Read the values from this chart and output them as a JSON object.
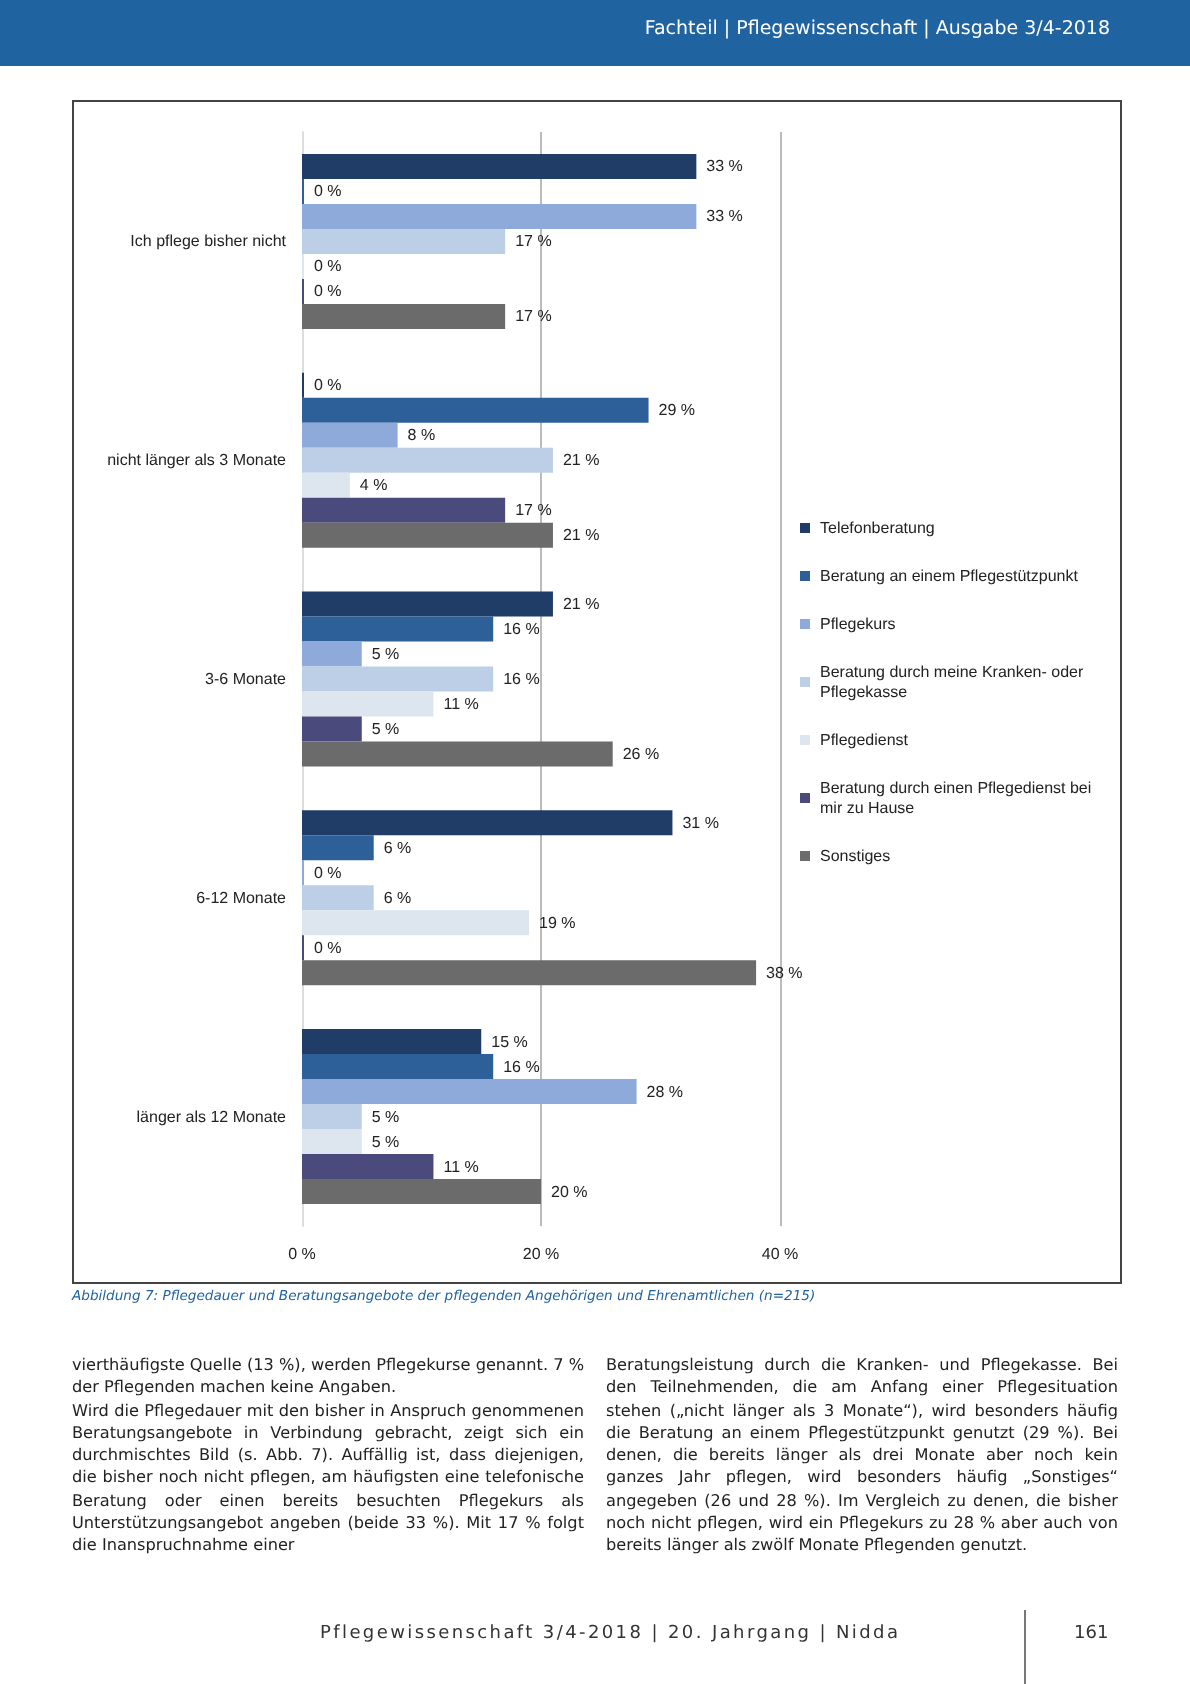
{
  "chart_data": {
    "type": "bar",
    "orientation": "horizontal",
    "categories": [
      "Ich pflege bisher nicht",
      "nicht länger als 3 Monate",
      "3-6 Monate",
      "6-12 Monate",
      "länger als 12 Monate"
    ],
    "series": [
      {
        "name": "Telefonberatung",
        "color": "#1f3d66",
        "values": [
          33,
          0,
          21,
          31,
          15
        ],
        "value_labels": [
          "33 %",
          "0 %",
          "21 %",
          "31 %",
          "15 %"
        ]
      },
      {
        "name": "Beratung an einem Pflegestützpunkt",
        "color": "#2d5f99",
        "values": [
          0,
          29,
          16,
          6,
          16
        ],
        "value_labels": [
          "0 %",
          "29 %",
          "16 %",
          "6 %",
          "16 %"
        ]
      },
      {
        "name": "Pflegekurs",
        "color": "#8eaadb",
        "values": [
          33,
          8,
          5,
          0,
          28
        ],
        "value_labels": [
          "33 %",
          "8 %",
          "5 %",
          "0 %",
          "28 %"
        ]
      },
      {
        "name": "Beratung durch meine Kranken- oder Pflegekasse",
        "color": "#bccfe6",
        "values": [
          17,
          21,
          16,
          6,
          5
        ],
        "value_labels": [
          "17 %",
          "21 %",
          "16 %",
          "6 %",
          "5 %"
        ]
      },
      {
        "name": "Pflegedienst",
        "color": "#dde5ef",
        "values": [
          0,
          4,
          11,
          19,
          5
        ],
        "value_labels": [
          "0 %",
          "4 %",
          "11 %",
          "19 %",
          "5 %"
        ]
      },
      {
        "name": "Beratung durch einen Pflegedienst bei mir zu Hause",
        "color": "#4a4a7c",
        "values": [
          0,
          17,
          5,
          0,
          11
        ],
        "value_labels": [
          "0 %",
          "17 %",
          "5 %",
          "0 %",
          "11 %"
        ]
      },
      {
        "name": "Sonstiges",
        "color": "#6b6b6b",
        "values": [
          17,
          21,
          26,
          38,
          20
        ],
        "value_labels": [
          "17 %",
          "21 %",
          "26 %",
          "38 %",
          "20 %"
        ]
      }
    ],
    "xlim": [
      0,
      40
    ],
    "xticks": [
      {
        "value": 0,
        "label": "0 %"
      },
      {
        "value": 20,
        "label": "20 %"
      },
      {
        "value": 40,
        "label": "40 %"
      }
    ],
    "grid": "x",
    "legend": "right",
    "annotations": [
      "Fachteil | Pflegewissenschaft | Ausgabe 3/4-2018",
      "Abbildung 7: Pflegedauer und Beratungsangebote der pflegenden Angehörigen und Ehrenamtlichen (n=215)",
      "vierthäufigste Quelle (13 %), werden Pflegekurse genannt. 7 % der Pflegenden machen keine Angaben.\nWird die Pflegedauer mit den bisher in Anspruch genommenen Beratungsangebote in Verbindung gebracht, zeigt sich ein durchmischtes Bild (s. Abb. 7). Auffällig ist, dass diejenigen, die bisher noch nicht pflegen, am häufigsten eine telefonische Beratung oder einen bereits besuchten Pflegekurs als Unterstützungsangebot angeben (beide 33 %). Mit 17 % folgt die Inanspruchnahme einer",
      "Beratungsleistung durch die Kranken- und Pflegekasse. Bei den Teilnehmenden, die am Anfang einer Pflegesituation stehen („nicht länger als 3 Monate“), wird besonders häufig die Beratung an einem Pflegestützpunkt genutzt (29 %). Bei denen, die bereits länger als drei Monate aber noch kein ganzes Jahr pflegen, wird besonders häufig „Sonstiges“ angegeben (26 und 28 %). Im Vergleich zu denen, die bisher noch nicht pflegen, wird ein Pflegekurs zu 28 % aber auch von bereits länger als zwölf Monate Pflegenden genutzt.",
      "Pflegewissenschaft 3/4-2018 | 20. Jahrgang | Nidda",
      "161"
    ]
  }
}
